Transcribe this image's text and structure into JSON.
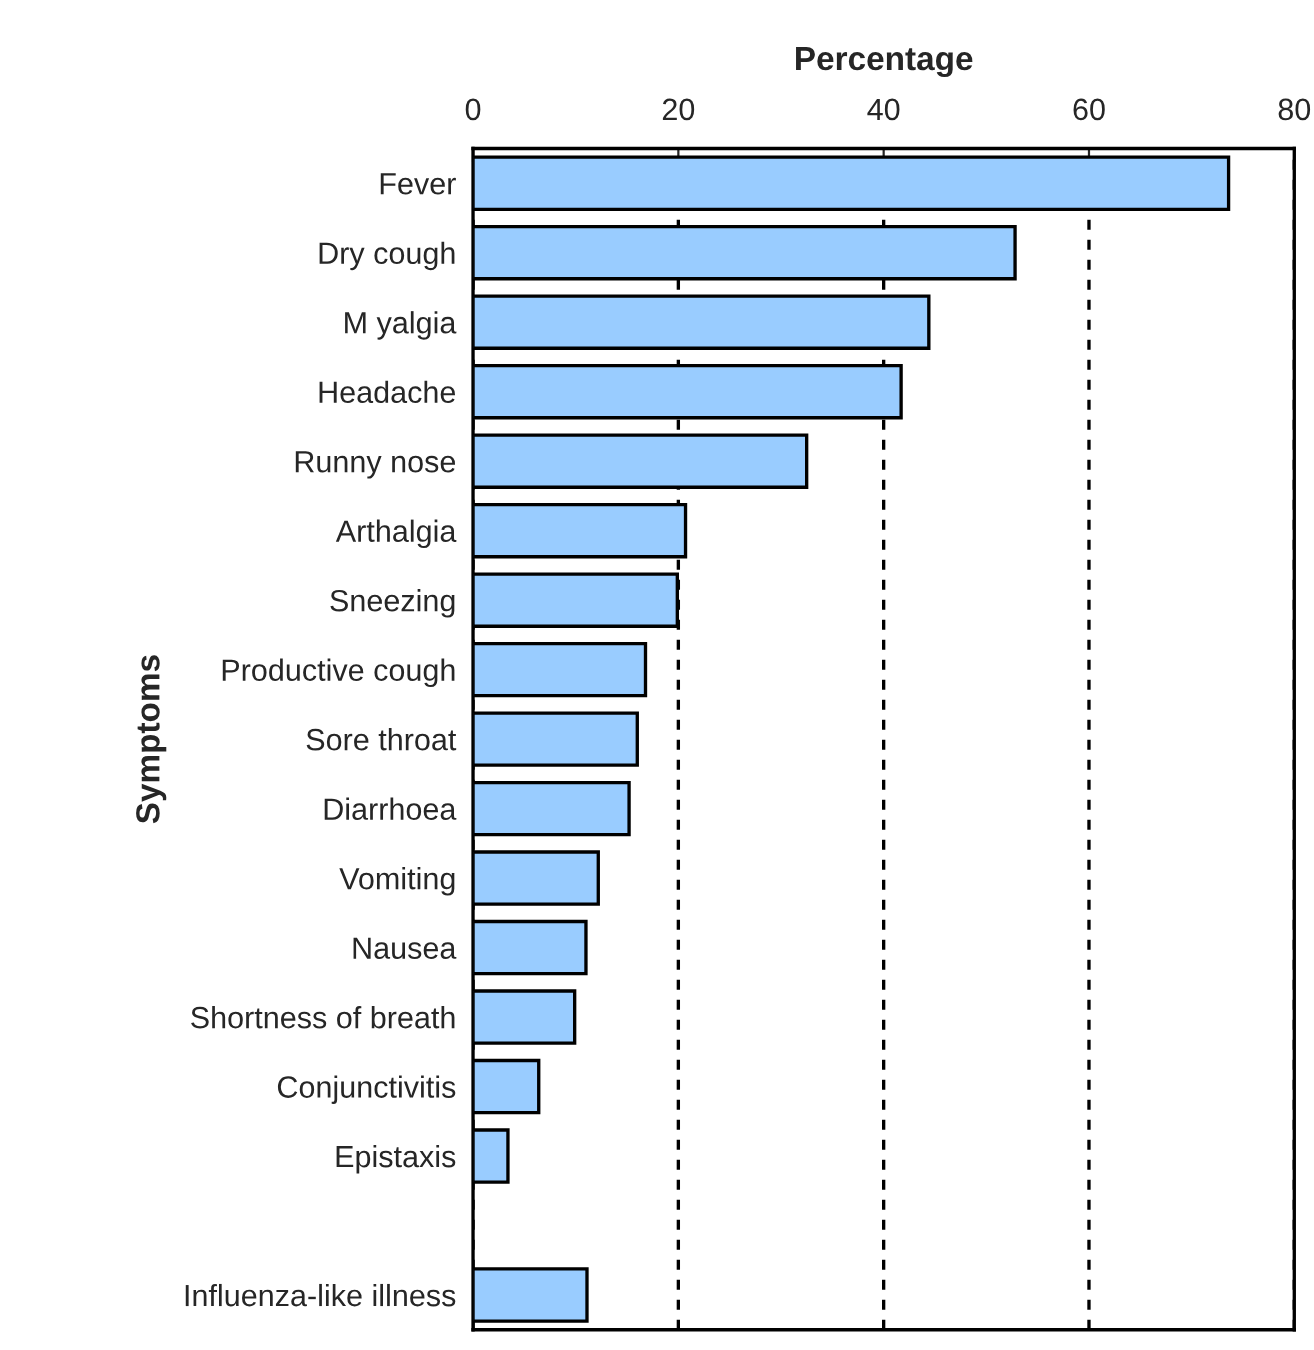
{
  "chart_data": {
    "type": "bar",
    "orientation": "horizontal",
    "xlabel": "Percentage",
    "ylabel": "Symptoms",
    "categories": [
      "Fever",
      "Dry cough",
      "M yalgia",
      "Headache",
      "Runny nose",
      "Arthalgia",
      "Sneezing",
      "Productive cough",
      "Sore throat",
      "Diarrhoea",
      "Vomiting",
      "Nausea",
      "Shortness of breath",
      "Conjunctivitis",
      "Epistaxis",
      null,
      "Influenza-like illness"
    ],
    "values": [
      73.6,
      52.8,
      44.4,
      41.7,
      32.5,
      20.7,
      19.9,
      16.8,
      16.0,
      15.2,
      12.2,
      11.0,
      9.9,
      6.4,
      3.4,
      null,
      11.1
    ],
    "color": "#99ccff",
    "xlim": [
      0,
      80
    ],
    "xticks": [
      0,
      20,
      40,
      60,
      80
    ],
    "grid": "x",
    "line_style": "dashed"
  }
}
